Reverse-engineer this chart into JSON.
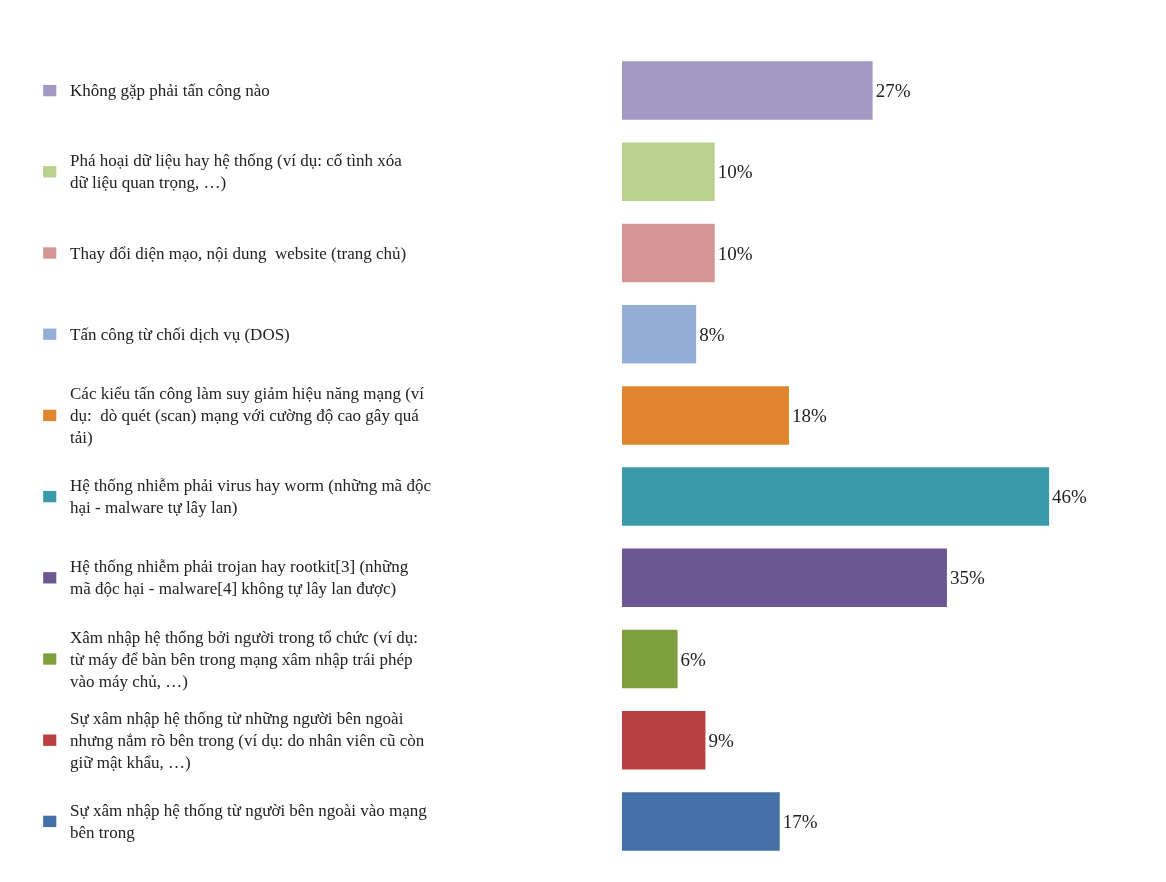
{
  "chart_data": {
    "type": "bar",
    "orientation": "horizontal",
    "categories": [
      "Không gặp phải tấn công nào",
      "Phá hoại dữ liệu hay hệ thống (ví dụ: cố tình xóa dữ liệu quan trọng, …)",
      "Thay đổi diện mạo, nội dung  website (trang chủ)",
      "Tấn công từ chối dịch vụ (DOS)",
      "Các kiểu tấn công làm suy giảm hiệu năng mạng (ví dụ:  dò quét (scan) mạng với cường độ cao gây quá tải)",
      "Hệ thống nhiễm phải virus hay worm (những mã độc hại - malware tự lây lan)",
      "Hệ thống nhiễm phải trojan hay rootkit[3] (những mã độc hại - malware[4] không tự lây lan được)",
      "Xâm nhập hệ thống bởi người trong tổ chức (ví dụ: từ máy để bàn bên trong mạng xâm nhập trái phép vào máy chủ, …)",
      "Sự xâm nhập hệ thống từ những người bên ngoài nhưng nắm rõ bên trong (ví dụ: do nhân viên cũ còn giữ mật khẩu, …)",
      "Sự xâm nhập hệ thống từ người bên ngoài vào mạng bên trong"
    ],
    "values": [
      27,
      10,
      10,
      8,
      18,
      46,
      35,
      6,
      9,
      17
    ],
    "value_labels": [
      "27%",
      "10%",
      "10%",
      "8%",
      "18%",
      "46%",
      "35%",
      "6%",
      "9%",
      "17%"
    ],
    "colors": [
      "#a398c4",
      "#b9d18e",
      "#d69595",
      "#95aed6",
      "#e0862e",
      "#3a9aaa",
      "#6c5694",
      "#7f9f3e",
      "#b84040",
      "#4470a8"
    ]
  }
}
